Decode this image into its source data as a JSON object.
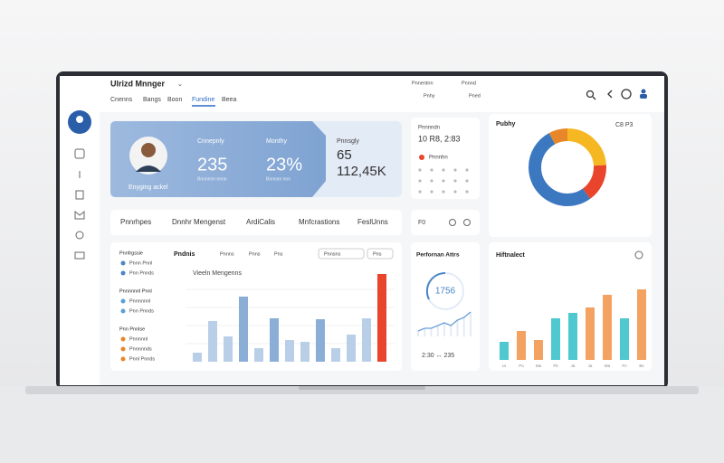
{
  "app": {
    "title": "Ulrizd Mnnger",
    "tabs": [
      "Cnenns",
      "Bangs",
      "Boon",
      "Fundine",
      "Beea"
    ],
    "active_tab": 3,
    "links": [
      "Pnnentnn",
      "Pnnnd",
      "Pnhy",
      "Pned"
    ]
  },
  "profile": {
    "caption": "Enyging ackel",
    "stats": [
      {
        "label": "Cnnepnly",
        "value": "235",
        "note": "Bnnnnnn nnnn"
      },
      {
        "label": "Monthy",
        "value": "23%",
        "note": "Bnnnnn nnn"
      },
      {
        "label": "Pnnsgly",
        "value": "65",
        "value2": "112,45K"
      }
    ]
  },
  "schedule": {
    "title": "Pnnnndn",
    "time": "10 R8, 2:83",
    "item": "Pnnnhn"
  },
  "nav": [
    "Pnnrhpes",
    "Dnnhr Mengenst",
    "ArdiCalis",
    "Mnfcrastions",
    "FeslUnns"
  ],
  "mini": "F0",
  "sidebar": {
    "groups": [
      {
        "title": "Pnnfrgssie",
        "items": [
          "Pnnn Pnnl",
          "Pnn Pnnds"
        ]
      },
      {
        "title": "Pnnnnnnl Pnnl",
        "items": [
          "Pnnnnnnl",
          "Pnn Pnnds"
        ]
      },
      {
        "title": "Pnn Pnnlse",
        "items": [
          "Pnnnnnl",
          "Pnnnnnds",
          "Pnnl Pnnds"
        ]
      }
    ]
  },
  "activity": {
    "type": "bar",
    "title": "Pndnis",
    "subtitle": "Vieeln Mengenns",
    "filters": [
      "Pnnns",
      "Pnns",
      "Pns"
    ],
    "dropdowns": [
      "Pnnsns",
      "Pns"
    ],
    "values": [
      10,
      45,
      28,
      72,
      15,
      48,
      24,
      22,
      47,
      15,
      30,
      48,
      97
    ],
    "colors": [
      "#b9cfe8",
      "#b9cfe8",
      "#b9cfe8",
      "#8aaed6",
      "#b9cfe8",
      "#8aaed6",
      "#b9cfe8",
      "#b9cfe8",
      "#8aaed6",
      "#b9cfe8",
      "#b9cfe8",
      "#b9cfe8",
      "#e8452c"
    ]
  },
  "performance": {
    "type": "line",
    "title": "Perfornan Attrs",
    "value": "1756",
    "footer": "2:30 ↔ 235",
    "values": [
      2,
      3,
      3,
      4,
      5,
      4,
      6,
      7,
      9
    ],
    "color": "#6aa0d8"
  },
  "share": {
    "type": "pie",
    "title": "Pubhy",
    "badge": "C8 P3",
    "values": [
      24,
      16,
      52,
      8
    ],
    "colors": [
      "#f5b722",
      "#e8452c",
      "#3c78c0",
      "#e8862a"
    ]
  },
  "trend": {
    "type": "bar",
    "title": "Hiftnalect",
    "categories": [
      "Ia",
      "Po",
      "Ma",
      "Fb",
      "Ja",
      "Ja",
      "Ma",
      "Fn",
      "Bs"
    ],
    "values": [
      20,
      32,
      22,
      46,
      52,
      58,
      72,
      46,
      78
    ],
    "colors": [
      "#4fc8d0",
      "#f4a261",
      "#f4a261",
      "#4fc8d0",
      "#4fc8d0",
      "#f4a261",
      "#f4a261",
      "#4fc8d0",
      "#f4a261"
    ]
  }
}
